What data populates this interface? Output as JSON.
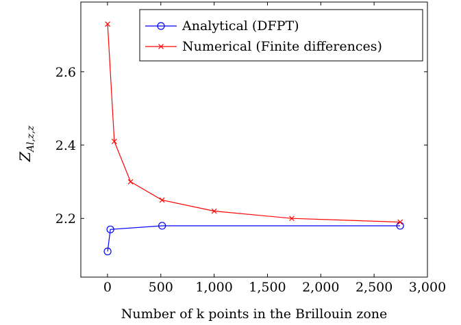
{
  "chart_data": {
    "type": "line",
    "title": "",
    "xlabel": "Number of k points in the Brillouin zone",
    "ylabel": "Z",
    "ylabel_sub": "Al,z,z",
    "xlim": [
      -250,
      3000
    ],
    "ylim": [
      2.04,
      2.79
    ],
    "xticks": [
      0,
      500,
      1000,
      1500,
      2000,
      2500,
      3000
    ],
    "xtick_labels": [
      "0",
      "500",
      "1,000",
      "1,500",
      "2,000",
      "2,500",
      "3,000"
    ],
    "yticks": [
      2.2,
      2.4,
      2.6
    ],
    "ytick_labels": [
      "2.2",
      "2.4",
      "2.6"
    ],
    "grid": false,
    "legend_position": "top-right",
    "series": [
      {
        "name": "Analytical (DFPT)",
        "color": "#0000ff",
        "marker": "circle",
        "x": [
          1,
          27,
          512,
          2744
        ],
        "y": [
          2.11,
          2.17,
          2.18,
          2.18
        ]
      },
      {
        "name": "Numerical (Finite differences)",
        "color": "#ff0000",
        "marker": "x",
        "x": [
          1,
          64,
          216,
          512,
          1000,
          1728,
          2744
        ],
        "y": [
          2.73,
          2.41,
          2.3,
          2.25,
          2.22,
          2.2,
          2.19
        ]
      }
    ]
  }
}
